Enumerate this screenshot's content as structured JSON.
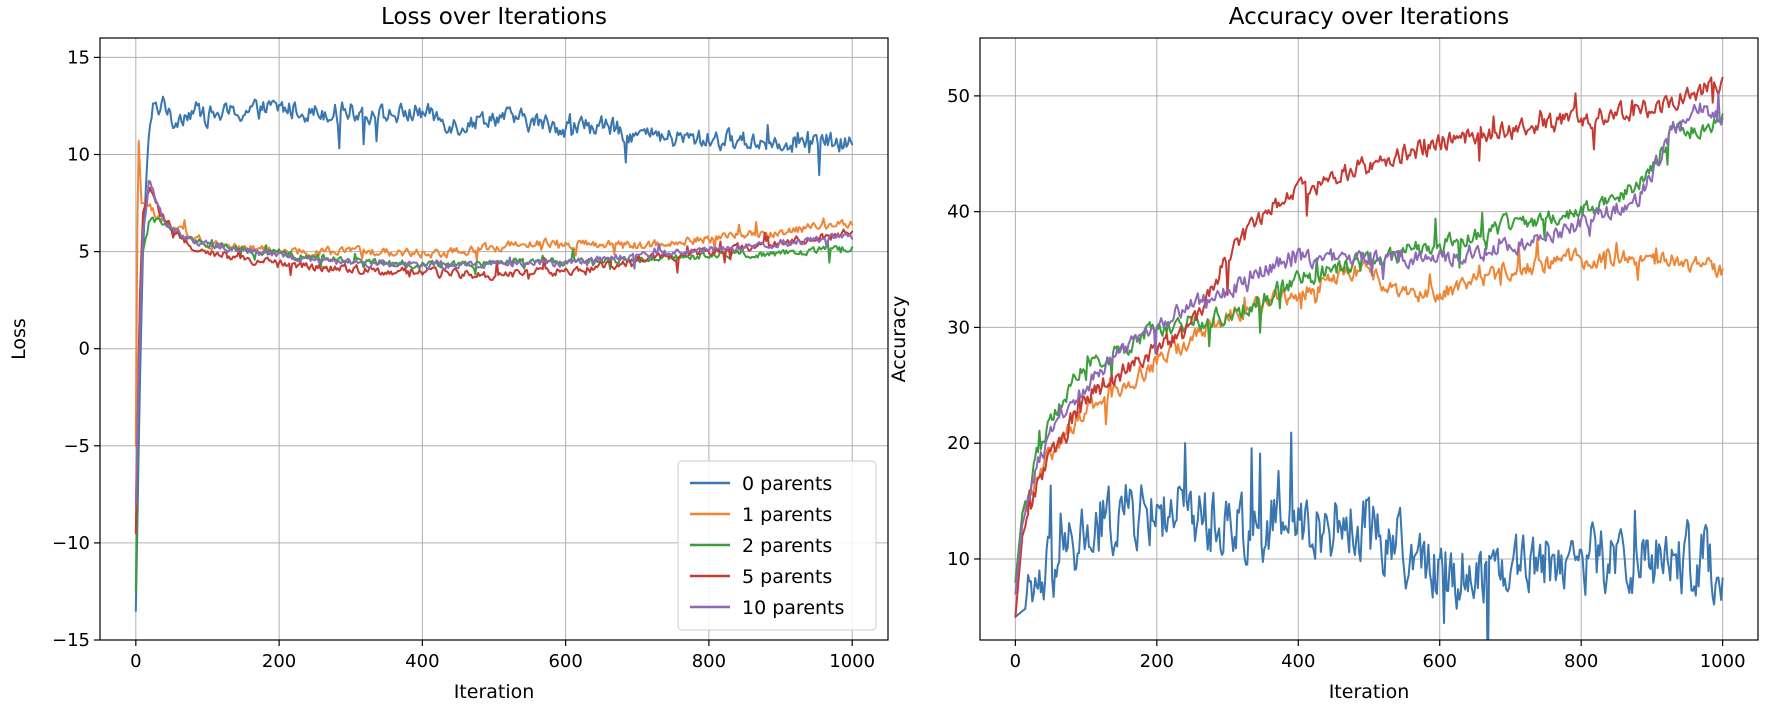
{
  "chart_data": [
    {
      "type": "line",
      "title": "Loss over Iterations",
      "xlabel": "Iteration",
      "ylabel": "Loss",
      "xlim": [
        -50,
        1050
      ],
      "ylim": [
        -15,
        16
      ],
      "xticks": [
        0,
        200,
        400,
        600,
        800,
        1000
      ],
      "yticks": [
        15,
        10,
        5,
        0,
        -5,
        -10,
        -15
      ],
      "grid": true,
      "legend": "lower-right",
      "series": [
        {
          "name": "0 parents",
          "color": "#3a76af",
          "points": [
            [
              0,
              -13.5
            ],
            [
              5,
              -3
            ],
            [
              10,
              5
            ],
            [
              15,
              9
            ],
            [
              20,
              11.5
            ],
            [
              25,
              12.5
            ],
            [
              30,
              12.2
            ],
            [
              40,
              13
            ],
            [
              50,
              11.5
            ],
            [
              60,
              12
            ],
            [
              80,
              12.3
            ],
            [
              100,
              12
            ],
            [
              150,
              12.2
            ],
            [
              200,
              12.4
            ],
            [
              250,
              12.2
            ],
            [
              300,
              12.3
            ],
            [
              350,
              12
            ],
            [
              400,
              12.2
            ],
            [
              450,
              11.5
            ],
            [
              500,
              12
            ],
            [
              550,
              11.7
            ],
            [
              600,
              11.4
            ],
            [
              650,
              11.5
            ],
            [
              700,
              11
            ],
            [
              750,
              10.8
            ],
            [
              800,
              10.8
            ],
            [
              850,
              10.7
            ],
            [
              900,
              10.7
            ],
            [
              950,
              10.6
            ],
            [
              1000,
              10.5
            ]
          ],
          "noise": 0.8
        },
        {
          "name": "1 parents",
          "color": "#ef8636",
          "points": [
            [
              0,
              -5
            ],
            [
              3,
              11.5
            ],
            [
              8,
              7.5
            ],
            [
              15,
              7.5
            ],
            [
              30,
              6.8
            ],
            [
              50,
              6.2
            ],
            [
              100,
              5.5
            ],
            [
              150,
              5.2
            ],
            [
              200,
              5
            ],
            [
              300,
              5
            ],
            [
              400,
              4.9
            ],
            [
              450,
              5
            ],
            [
              500,
              5.2
            ],
            [
              550,
              5.5
            ],
            [
              600,
              5.4
            ],
            [
              700,
              5.3
            ],
            [
              800,
              5.7
            ],
            [
              900,
              6
            ],
            [
              1000,
              6.5
            ]
          ],
          "noise": 0.35
        },
        {
          "name": "2 parents",
          "color": "#3b9e3b",
          "points": [
            [
              0,
              -12.5
            ],
            [
              5,
              2
            ],
            [
              10,
              5
            ],
            [
              20,
              6.8
            ],
            [
              40,
              6.3
            ],
            [
              80,
              5.5
            ],
            [
              150,
              5.1
            ],
            [
              200,
              4.9
            ],
            [
              300,
              4.5
            ],
            [
              400,
              4.3
            ],
            [
              500,
              4.4
            ],
            [
              600,
              4.5
            ],
            [
              700,
              4.6
            ],
            [
              800,
              4.8
            ],
            [
              900,
              4.9
            ],
            [
              1000,
              5.2
            ]
          ],
          "noise": 0.3
        },
        {
          "name": "5 parents",
          "color": "#c53a32",
          "points": [
            [
              0,
              -9.5
            ],
            [
              5,
              2
            ],
            [
              10,
              7
            ],
            [
              20,
              8.3
            ],
            [
              40,
              6.5
            ],
            [
              80,
              5.2
            ],
            [
              150,
              4.6
            ],
            [
              200,
              4.3
            ],
            [
              300,
              4.1
            ],
            [
              400,
              3.9
            ],
            [
              500,
              3.8
            ],
            [
              600,
              4
            ],
            [
              700,
              4.5
            ],
            [
              800,
              5
            ],
            [
              900,
              5.5
            ],
            [
              1000,
              6
            ]
          ],
          "noise": 0.35
        },
        {
          "name": "10 parents",
          "color": "#8d69b8",
          "points": [
            [
              0,
              -8
            ],
            [
              5,
              0
            ],
            [
              10,
              6
            ],
            [
              20,
              8.5
            ],
            [
              40,
              6.5
            ],
            [
              80,
              5.5
            ],
            [
              150,
              5
            ],
            [
              200,
              4.8
            ],
            [
              300,
              4.4
            ],
            [
              400,
              4.3
            ],
            [
              500,
              4.3
            ],
            [
              600,
              4.4
            ],
            [
              700,
              4.8
            ],
            [
              800,
              5.1
            ],
            [
              900,
              5.4
            ],
            [
              1000,
              5.8
            ]
          ],
          "noise": 0.3
        }
      ]
    },
    {
      "type": "line",
      "title": "Accuracy over Iterations",
      "xlabel": "Iteration",
      "ylabel": "Accuracy",
      "xlim": [
        -50,
        1050
      ],
      "ylim": [
        3,
        55
      ],
      "xticks": [
        0,
        200,
        400,
        600,
        800,
        1000
      ],
      "yticks": [
        10,
        20,
        30,
        40,
        50
      ],
      "grid": true,
      "legend": "none",
      "series": [
        {
          "name": "0 parents",
          "color": "#3a76af",
          "points": [
            [
              0,
              5
            ],
            [
              20,
              6
            ],
            [
              50,
              9
            ],
            [
              100,
              12
            ],
            [
              150,
              14
            ],
            [
              200,
              14
            ],
            [
              250,
              14
            ],
            [
              300,
              13
            ],
            [
              400,
              13
            ],
            [
              500,
              13
            ],
            [
              560,
              10
            ],
            [
              600,
              9
            ],
            [
              650,
              9
            ],
            [
              700,
              10
            ],
            [
              800,
              10
            ],
            [
              900,
              10
            ],
            [
              1000,
              10
            ]
          ],
          "noise": 4.5
        },
        {
          "name": "1 parents",
          "color": "#ef8636",
          "points": [
            [
              0,
              8
            ],
            [
              10,
              14
            ],
            [
              30,
              17
            ],
            [
              60,
              20
            ],
            [
              100,
              23
            ],
            [
              150,
              25
            ],
            [
              200,
              27
            ],
            [
              250,
              29
            ],
            [
              300,
              31
            ],
            [
              400,
              33
            ],
            [
              480,
              35
            ],
            [
              520,
              34
            ],
            [
              560,
              33
            ],
            [
              600,
              33
            ],
            [
              700,
              35
            ],
            [
              800,
              36
            ],
            [
              900,
              36
            ],
            [
              1000,
              35
            ]
          ],
          "noise": 1.2
        },
        {
          "name": "2 parents",
          "color": "#3b9e3b",
          "points": [
            [
              0,
              8
            ],
            [
              10,
              14
            ],
            [
              30,
              19
            ],
            [
              60,
              23
            ],
            [
              100,
              27
            ],
            [
              150,
              28
            ],
            [
              200,
              30
            ],
            [
              300,
              31
            ],
            [
              400,
              34
            ],
            [
              500,
              36
            ],
            [
              600,
              37
            ],
            [
              700,
              39
            ],
            [
              800,
              40
            ],
            [
              880,
              42
            ],
            [
              900,
              44
            ],
            [
              930,
              47
            ],
            [
              960,
              47
            ],
            [
              1000,
              48
            ]
          ],
          "noise": 1.2
        },
        {
          "name": "5 parents",
          "color": "#c53a32",
          "points": [
            [
              0,
              5
            ],
            [
              10,
              12
            ],
            [
              30,
              16
            ],
            [
              60,
              20
            ],
            [
              100,
              24
            ],
            [
              150,
              26
            ],
            [
              200,
              28
            ],
            [
              250,
              30
            ],
            [
              300,
              36
            ],
            [
              350,
              40
            ],
            [
              400,
              42
            ],
            [
              500,
              44
            ],
            [
              600,
              46
            ],
            [
              700,
              47
            ],
            [
              800,
              48
            ],
            [
              900,
              49
            ],
            [
              1000,
              51
            ]
          ],
          "noise": 1.3
        },
        {
          "name": "10 parents",
          "color": "#8d69b8",
          "points": [
            [
              0,
              7
            ],
            [
              10,
              13
            ],
            [
              30,
              18
            ],
            [
              60,
              22
            ],
            [
              100,
              25
            ],
            [
              150,
              28
            ],
            [
              200,
              30
            ],
            [
              250,
              32
            ],
            [
              300,
              33
            ],
            [
              350,
              35
            ],
            [
              400,
              36
            ],
            [
              500,
              36
            ],
            [
              600,
              36
            ],
            [
              700,
              37
            ],
            [
              800,
              39
            ],
            [
              880,
              41
            ],
            [
              930,
              47
            ],
            [
              970,
              49
            ],
            [
              1000,
              48
            ]
          ],
          "noise": 1.1
        }
      ]
    }
  ]
}
